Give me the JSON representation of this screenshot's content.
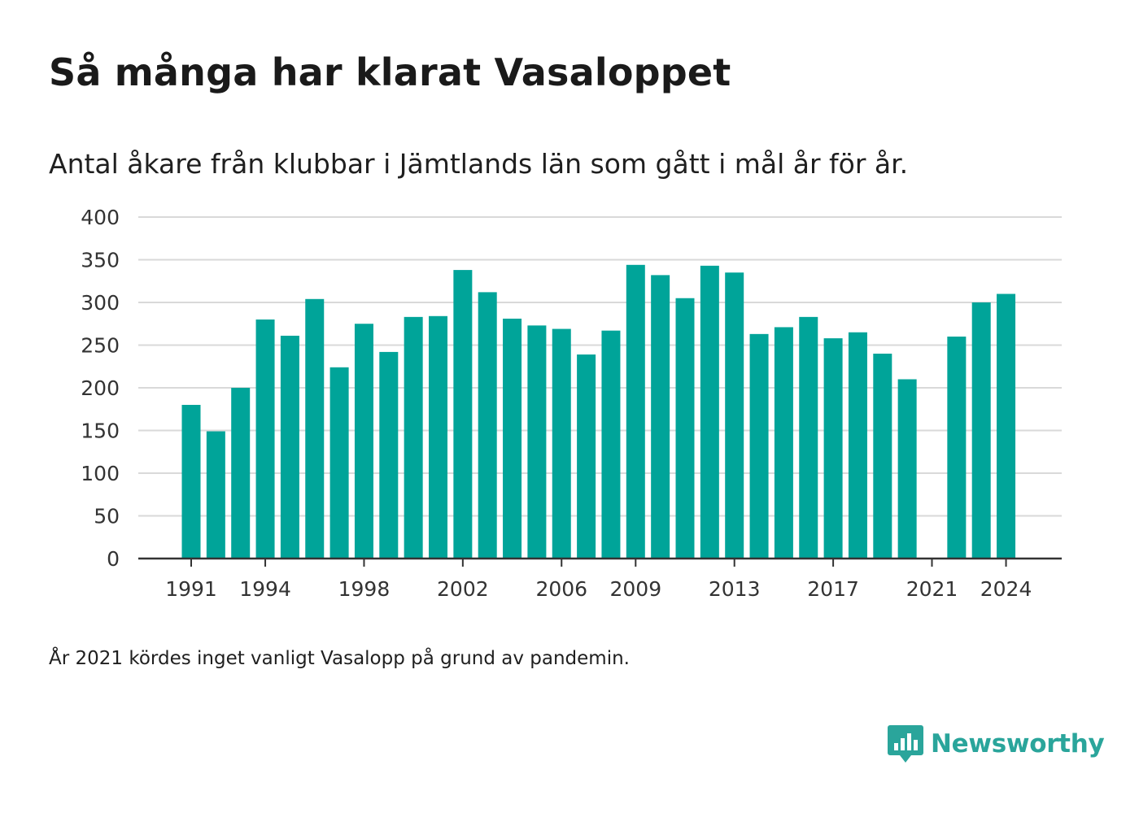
{
  "title": "Så många har klarat Vasaloppet",
  "subtitle": "Antal åkare från klubbar i Jämtlands län som gått i mål år för år.",
  "footnote": "År 2021 kördes inget vanligt Vasalopp på grund av pandemin.",
  "brand": {
    "name": "Newsworthy",
    "icon": "newsworthy-logo-icon",
    "color": "#2aa59b"
  },
  "chart_data": {
    "type": "bar",
    "title": "Så många har klarat Vasaloppet",
    "subtitle": "Antal åkare från klubbar i Jämtlands län som gått i mål år för år.",
    "xlabel": "",
    "ylabel": "",
    "ylim": [
      0,
      400
    ],
    "yticks": [
      0,
      50,
      100,
      150,
      200,
      250,
      300,
      350,
      400
    ],
    "xtick_labels": [
      "1991",
      "1994",
      "1998",
      "2002",
      "2006",
      "2009",
      "2013",
      "2017",
      "2021",
      "2024"
    ],
    "grid": true,
    "bar_color": "#00a499",
    "categories": [
      "1991",
      "1992",
      "1993",
      "1994",
      "1995",
      "1996",
      "1997",
      "1998",
      "1999",
      "2000",
      "2001",
      "2002",
      "2003",
      "2004",
      "2005",
      "2006",
      "2007",
      "2008",
      "2009",
      "2010",
      "2011",
      "2012",
      "2013",
      "2014",
      "2015",
      "2016",
      "2017",
      "2018",
      "2019",
      "2020",
      "2021",
      "2022",
      "2023",
      "2024"
    ],
    "values": [
      180,
      149,
      200,
      280,
      261,
      304,
      224,
      275,
      242,
      283,
      284,
      338,
      312,
      281,
      273,
      269,
      239,
      267,
      344,
      332,
      305,
      343,
      335,
      263,
      271,
      283,
      258,
      265,
      240,
      210,
      null,
      260,
      300,
      310
    ]
  }
}
